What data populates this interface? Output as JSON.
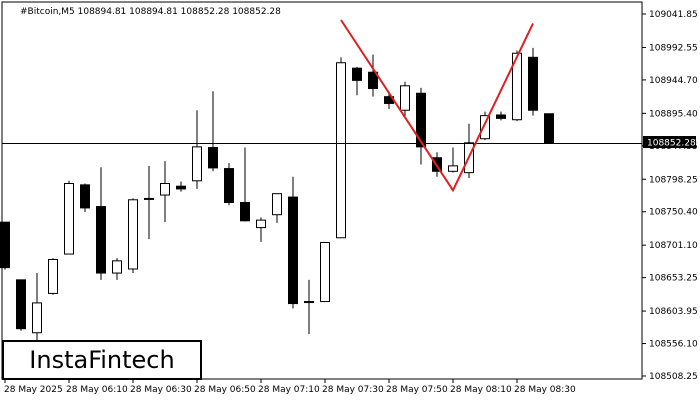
{
  "chart_data": {
    "type": "candlestick",
    "symbol_line": "#Bitcoin,M5  108894.81 108894.81 108852.28 108852.28",
    "current_price_label": "108852.28",
    "current_price": 108852.28,
    "y_ticks": [
      109041.85,
      108992.55,
      108944.7,
      108895.4,
      108847.55,
      108798.25,
      108750.4,
      108701.1,
      108653.25,
      108603.95,
      108556.1,
      108508.25
    ],
    "y_tick_labels": [
      "109041.85",
      "108992.55",
      "108944.70",
      "108895.40",
      "108847.55",
      "108798.25",
      "108750.40",
      "108701.10",
      "108653.25",
      "108603.95",
      "108556.10",
      "108508.25"
    ],
    "ylim": [
      108508.25,
      109050.0
    ],
    "x_tick_labels": [
      "28 May 2025",
      "28 May 06:10",
      "28 May 06:30",
      "28 May 06:50",
      "28 May 07:10",
      "28 May 07:30",
      "28 May 07:50",
      "28 May 08:10",
      "28 May 08:30"
    ],
    "x_tick_index": [
      0,
      4,
      8,
      12,
      16,
      20,
      24,
      28,
      32
    ],
    "candles": [
      {
        "o": 108735,
        "h": 108735,
        "l": 108665,
        "c": 108668
      },
      {
        "o": 108650,
        "h": 108650,
        "l": 108575,
        "c": 108578
      },
      {
        "o": 108572,
        "h": 108660,
        "l": 108545,
        "c": 108616
      },
      {
        "o": 108630,
        "h": 108682,
        "l": 108628,
        "c": 108680
      },
      {
        "o": 108688,
        "h": 108796,
        "l": 108688,
        "c": 108792
      },
      {
        "o": 108790,
        "h": 108792,
        "l": 108750,
        "c": 108756
      },
      {
        "o": 108758,
        "h": 108816,
        "l": 108650,
        "c": 108660
      },
      {
        "o": 108660,
        "h": 108682,
        "l": 108650,
        "c": 108678
      },
      {
        "o": 108666,
        "h": 108770,
        "l": 108660,
        "c": 108768
      },
      {
        "o": 108770,
        "h": 108818,
        "l": 108710,
        "c": 108770
      },
      {
        "o": 108775,
        "h": 108825,
        "l": 108735,
        "c": 108792
      },
      {
        "o": 108788,
        "h": 108795,
        "l": 108780,
        "c": 108784
      },
      {
        "o": 108796,
        "h": 108900,
        "l": 108784,
        "c": 108846
      },
      {
        "o": 108845,
        "h": 108928,
        "l": 108810,
        "c": 108815
      },
      {
        "o": 108814,
        "h": 108822,
        "l": 108760,
        "c": 108764
      },
      {
        "o": 108764,
        "h": 108845,
        "l": 108736,
        "c": 108737
      },
      {
        "o": 108727,
        "h": 108742,
        "l": 108706,
        "c": 108738
      },
      {
        "o": 108746,
        "h": 108776,
        "l": 108734,
        "c": 108777
      },
      {
        "o": 108772,
        "h": 108802,
        "l": 108608,
        "c": 108615
      },
      {
        "o": 108618,
        "h": 108650,
        "l": 108570,
        "c": 108618
      },
      {
        "o": 108618,
        "h": 108705,
        "l": 108618,
        "c": 108705
      },
      {
        "o": 108712,
        "h": 108978,
        "l": 108712,
        "c": 108970
      },
      {
        "o": 108962,
        "h": 108964,
        "l": 108922,
        "c": 108944
      },
      {
        "o": 108956,
        "h": 108982,
        "l": 108920,
        "c": 108932
      },
      {
        "o": 108920,
        "h": 108925,
        "l": 108902,
        "c": 108910
      },
      {
        "o": 108900,
        "h": 108942,
        "l": 108890,
        "c": 108936
      },
      {
        "o": 108925,
        "h": 108933,
        "l": 108820,
        "c": 108846
      },
      {
        "o": 108830,
        "h": 108838,
        "l": 108802,
        "c": 108810
      },
      {
        "o": 108810,
        "h": 108845,
        "l": 108808,
        "c": 108818
      },
      {
        "o": 108808,
        "h": 108880,
        "l": 108800,
        "c": 108852
      },
      {
        "o": 108858,
        "h": 108898,
        "l": 108856,
        "c": 108892
      },
      {
        "o": 108893,
        "h": 108898,
        "l": 108885,
        "c": 108888
      },
      {
        "o": 108886,
        "h": 108988,
        "l": 108884,
        "c": 108984
      },
      {
        "o": 108978,
        "h": 108992,
        "l": 108892,
        "c": 108900
      },
      {
        "o": 108894.81,
        "h": 108894.81,
        "l": 108852.28,
        "c": 108852.28
      }
    ],
    "pattern": [
      {
        "index": 21,
        "price": 109033
      },
      {
        "index": 28,
        "price": 108782
      },
      {
        "index": 33,
        "price": 109028
      }
    ],
    "pattern_color": "#e02020",
    "grid": false,
    "background": "#ffffff",
    "candle_color_up": "#ffffff",
    "candle_color_down": "#000000"
  },
  "branding": {
    "logo_text": "InstaFintech"
  }
}
